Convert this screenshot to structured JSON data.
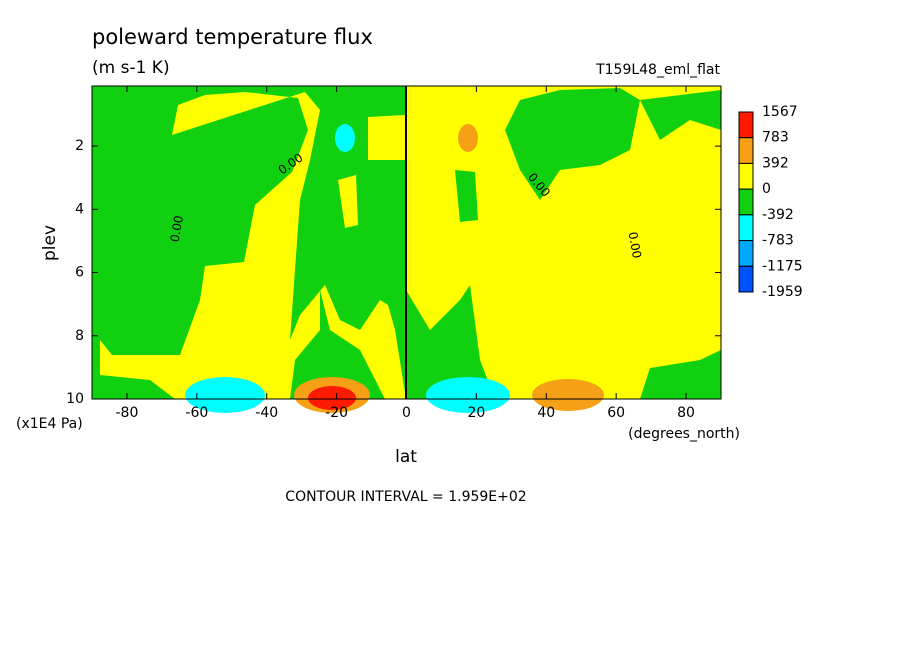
{
  "chart_data": {
    "type": "contour",
    "title": "poleward temperature flux",
    "units": "(m s-1 K)",
    "dataset": "T159L48_eml_flat",
    "x_label": "lat",
    "x_units": "(degrees_north)",
    "y_label": "plev",
    "y_units": "(x1E4 Pa)",
    "xlim": [
      -90,
      90
    ],
    "xticks": [
      -80,
      -60,
      -40,
      -20,
      0,
      20,
      40,
      60,
      80
    ],
    "ylim": [
      10,
      0.1
    ],
    "yticks": [
      2,
      4,
      6,
      8,
      10
    ],
    "contour_label": "0.00",
    "footer": "CONTOUR INTERVAL = 1.959E+02",
    "colorbar": {
      "levels": [
        1567,
        783,
        392,
        0,
        -392,
        -783,
        -1175,
        -1959
      ],
      "colors": [
        "#ff1a00",
        "#f5a015",
        "#ffff00",
        "#10d010",
        "#00ffff",
        "#00a8ff",
        "#0050ff"
      ]
    }
  }
}
